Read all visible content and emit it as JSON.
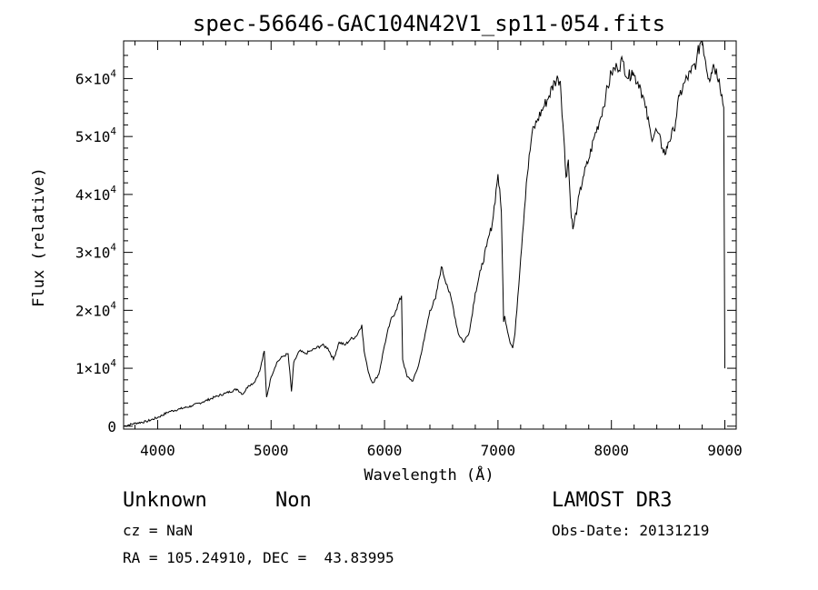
{
  "chart_data": {
    "type": "line",
    "title": "spec-56646-GAC104N42V1_sp11-054.fits",
    "xlabel": "Wavelength (Å)",
    "ylabel": "Flux (relative)",
    "xlim": [
      3700,
      9100
    ],
    "ylim": [
      -500,
      66500
    ],
    "x_ticks": [
      4000,
      5000,
      6000,
      7000,
      8000,
      9000
    ],
    "x_tick_labels": [
      "4000",
      "5000",
      "6000",
      "7000",
      "8000",
      "9000"
    ],
    "y_ticks": [
      0,
      10000,
      20000,
      30000,
      40000,
      50000,
      60000
    ],
    "y_tick_labels": [
      {
        "mantissa": "0",
        "exp": ""
      },
      {
        "mantissa": "1×10",
        "exp": "4"
      },
      {
        "mantissa": "2×10",
        "exp": "4"
      },
      {
        "mantissa": "3×10",
        "exp": "4"
      },
      {
        "mantissa": "4×10",
        "exp": "4"
      },
      {
        "mantissa": "5×10",
        "exp": "4"
      },
      {
        "mantissa": "6×10",
        "exp": "4"
      }
    ],
    "series": [
      {
        "name": "flux",
        "x": [
          3700,
          3800,
          3900,
          4000,
          4100,
          4200,
          4300,
          4400,
          4500,
          4600,
          4700,
          4750,
          4800,
          4850,
          4900,
          4940,
          4960,
          5000,
          5050,
          5100,
          5150,
          5180,
          5200,
          5250,
          5300,
          5350,
          5400,
          5450,
          5500,
          5550,
          5600,
          5650,
          5700,
          5750,
          5800,
          5820,
          5850,
          5880,
          5900,
          5950,
          6000,
          6050,
          6100,
          6150,
          6160,
          6200,
          6250,
          6300,
          6350,
          6400,
          6450,
          6500,
          6550,
          6600,
          6650,
          6700,
          6750,
          6800,
          6850,
          6900,
          6950,
          7000,
          7030,
          7050,
          7060,
          7100,
          7130,
          7150,
          7200,
          7250,
          7300,
          7350,
          7400,
          7450,
          7500,
          7530,
          7550,
          7580,
          7600,
          7620,
          7640,
          7660,
          7700,
          7750,
          7800,
          7850,
          7900,
          7950,
          8000,
          8050,
          8100,
          8150,
          8180,
          8200,
          8250,
          8300,
          8350,
          8400,
          8450,
          8480,
          8500,
          8550,
          8600,
          8650,
          8700,
          8750,
          8780,
          8800,
          8830,
          8860,
          8880,
          8900,
          8950,
          8990,
          9000
        ],
        "y": [
          0,
          500,
          800,
          1500,
          2500,
          3000,
          3500,
          4200,
          5000,
          5700,
          6400,
          5500,
          7000,
          7500,
          9500,
          13000,
          5000,
          8500,
          11000,
          12000,
          12500,
          6000,
          11000,
          13000,
          12500,
          13000,
          13500,
          14000,
          13500,
          11500,
          14500,
          14000,
          15000,
          15500,
          17500,
          13000,
          10000,
          8000,
          7500,
          9000,
          14000,
          18000,
          20000,
          22500,
          11500,
          8500,
          7800,
          10500,
          15000,
          20000,
          22000,
          27500,
          24500,
          21000,
          16000,
          14500,
          16500,
          23000,
          27000,
          31000,
          35000,
          43500,
          37000,
          18000,
          19000,
          15000,
          13500,
          16000,
          29000,
          42000,
          50500,
          53000,
          55000,
          57000,
          59500,
          60000,
          59500,
          50000,
          43000,
          46000,
          38000,
          34000,
          38000,
          43000,
          46000,
          50000,
          53000,
          57000,
          61000,
          62000,
          63000,
          60000,
          61500,
          60500,
          59000,
          55000,
          50000,
          51000,
          48000,
          47000,
          49000,
          51000,
          57000,
          59500,
          61000,
          63000,
          66000,
          67000,
          63000,
          60000,
          61000,
          62500,
          60000,
          55000,
          10000
        ]
      }
    ]
  },
  "info": {
    "object_class": "Unknown",
    "subclass": "Non",
    "survey": "LAMOST DR3",
    "cz": "cz = NaN",
    "obs_date": "Obs-Date: 20131219",
    "coords": "RA = 105.24910, DEC =  43.83995"
  }
}
